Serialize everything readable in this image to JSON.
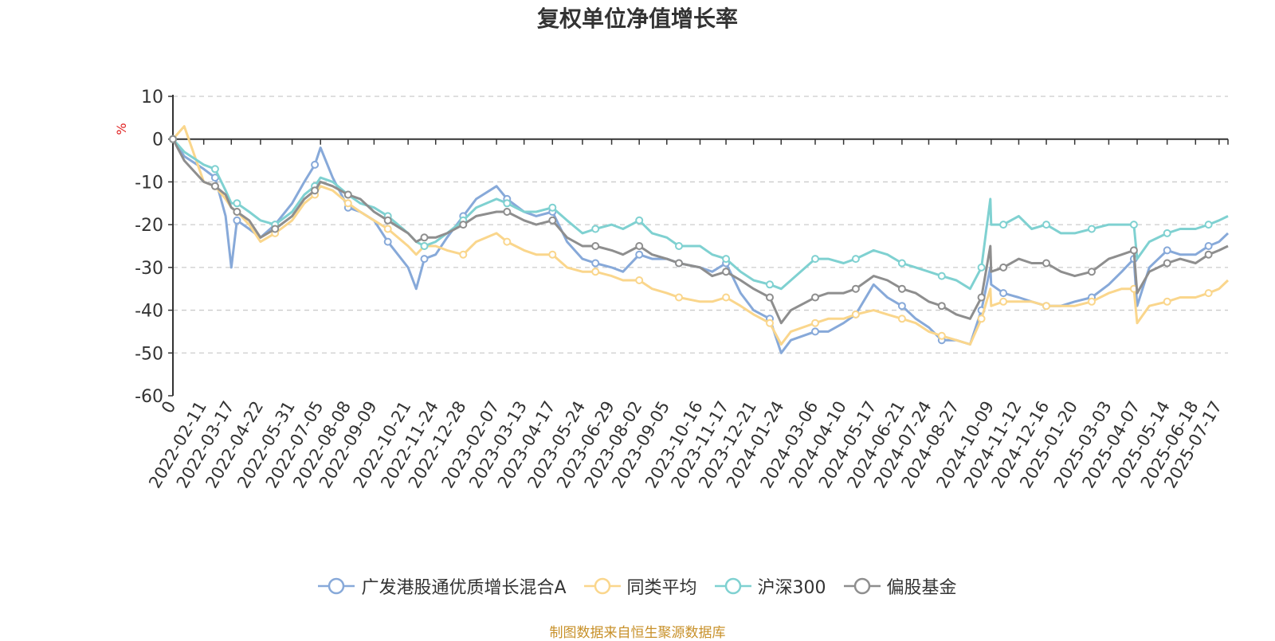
{
  "title": "复权单位净值增长率",
  "source_note": "制图数据来自恒生聚源数据库",
  "chart_data": {
    "type": "line",
    "ylabel": "%",
    "ylim": [
      -60,
      10
    ],
    "yticks": [
      10,
      0,
      -10,
      -20,
      -30,
      -40,
      -50,
      -60
    ],
    "grid": true,
    "legend_position": "bottom",
    "x_origin_label": "0",
    "x": [
      "2022-01-04",
      "2022-01-18",
      "2022-02-11",
      "2022-02-25",
      "2022-03-10",
      "2022-03-17",
      "2022-03-24",
      "2022-04-08",
      "2022-04-22",
      "2022-05-10",
      "2022-05-31",
      "2022-06-15",
      "2022-06-28",
      "2022-07-05",
      "2022-07-20",
      "2022-08-08",
      "2022-08-23",
      "2022-09-09",
      "2022-09-26",
      "2022-10-21",
      "2022-10-31",
      "2022-11-10",
      "2022-11-24",
      "2022-12-08",
      "2022-12-28",
      "2023-01-13",
      "2023-02-07",
      "2023-02-20",
      "2023-03-13",
      "2023-03-28",
      "2023-04-17",
      "2023-05-05",
      "2023-05-24",
      "2023-06-09",
      "2023-06-29",
      "2023-07-13",
      "2023-08-02",
      "2023-08-18",
      "2023-09-05",
      "2023-09-20",
      "2023-10-16",
      "2023-10-31",
      "2023-11-17",
      "2023-12-05",
      "2023-12-21",
      "2024-01-10",
      "2024-01-24",
      "2024-02-05",
      "2024-03-06",
      "2024-03-22",
      "2024-04-10",
      "2024-04-25",
      "2024-05-17",
      "2024-06-03",
      "2024-06-21",
      "2024-07-08",
      "2024-07-24",
      "2024-08-09",
      "2024-08-27",
      "2024-09-13",
      "2024-09-27",
      "2024-10-08",
      "2024-10-09",
      "2024-10-24",
      "2024-11-12",
      "2024-11-28",
      "2024-12-16",
      "2025-01-03",
      "2025-01-20",
      "2025-02-10",
      "2025-03-03",
      "2025-03-19",
      "2025-04-03",
      "2025-04-07",
      "2025-04-22",
      "2025-05-14",
      "2025-05-30",
      "2025-06-18",
      "2025-07-04",
      "2025-07-17",
      "2025-07-28"
    ],
    "xtick_labels": [
      "2022-02-11",
      "2022-03-17",
      "2022-04-22",
      "2022-05-31",
      "2022-07-05",
      "2022-08-08",
      "2022-09-09",
      "2022-10-21",
      "2022-11-24",
      "2022-12-28",
      "2023-02-07",
      "2023-03-13",
      "2023-04-17",
      "2023-05-24",
      "2023-06-29",
      "2023-08-02",
      "2023-09-05",
      "2023-10-16",
      "2023-11-17",
      "2023-12-21",
      "2024-01-24",
      "2024-03-06",
      "2024-04-10",
      "2024-05-17",
      "2024-06-21",
      "2024-07-24",
      "2024-08-27",
      "2024-10-09",
      "2024-11-12",
      "2024-12-16",
      "2025-01-20",
      "2025-03-03",
      "2025-04-07",
      "2025-05-14",
      "2025-06-18",
      "2025-07-17"
    ],
    "series": [
      {
        "name": "广发港股通优质增长混合A",
        "color": "#87a9d9",
        "values": [
          0,
          -4,
          -7,
          -9,
          -18,
          -30,
          -19,
          -21,
          -23,
          -20,
          -15,
          -10,
          -6,
          -2,
          -9,
          -16,
          -17,
          -19,
          -24,
          -30,
          -35,
          -28,
          -27,
          -23,
          -18,
          -14,
          -11,
          -14,
          -17,
          -18,
          -17,
          -24,
          -28,
          -29,
          -30,
          -31,
          -27,
          -28,
          -28,
          -29,
          -30,
          -31,
          -29,
          -36,
          -40,
          -42,
          -50,
          -47,
          -45,
          -45,
          -43,
          -41,
          -34,
          -37,
          -39,
          -42,
          -44,
          -47,
          -47,
          -48,
          -40,
          -30,
          -34,
          -36,
          -37,
          -38,
          -39,
          -39,
          -38,
          -37,
          -34,
          -31,
          -28,
          -39,
          -30,
          -26,
          -27,
          -27,
          -25,
          -24,
          -22
        ]
      },
      {
        "name": "同类平均",
        "color": "#fad68c",
        "values": [
          0,
          3,
          -10,
          -11,
          -14,
          -16,
          -17,
          -20,
          -24,
          -22,
          -19,
          -15,
          -13,
          -11,
          -12,
          -15,
          -17,
          -19,
          -21,
          -25,
          -27,
          -25,
          -25,
          -26,
          -27,
          -24,
          -22,
          -24,
          -26,
          -27,
          -27,
          -30,
          -31,
          -31,
          -32,
          -33,
          -33,
          -35,
          -36,
          -37,
          -38,
          -38,
          -37,
          -39,
          -41,
          -43,
          -48,
          -45,
          -43,
          -42,
          -42,
          -41,
          -40,
          -41,
          -42,
          -43,
          -45,
          -46,
          -47,
          -48,
          -42,
          -35,
          -39,
          -38,
          -38,
          -38,
          -39,
          -39,
          -39,
          -38,
          -36,
          -35,
          -35,
          -43,
          -39,
          -38,
          -37,
          -37,
          -36,
          -35,
          -33
        ]
      },
      {
        "name": "沪深300",
        "color": "#7fd1d1",
        "values": [
          0,
          -3,
          -6,
          -7,
          -12,
          -15,
          -15,
          -17,
          -19,
          -20,
          -17,
          -13,
          -11,
          -9,
          -10,
          -13,
          -15,
          -16,
          -18,
          -22,
          -24,
          -25,
          -24,
          -22,
          -19,
          -16,
          -14,
          -15,
          -17,
          -17,
          -16,
          -19,
          -22,
          -21,
          -20,
          -21,
          -19,
          -22,
          -23,
          -25,
          -25,
          -27,
          -28,
          -31,
          -33,
          -34,
          -35,
          -33,
          -28,
          -28,
          -29,
          -28,
          -26,
          -27,
          -29,
          -30,
          -31,
          -32,
          -33,
          -35,
          -30,
          -14,
          -20,
          -20,
          -18,
          -21,
          -20,
          -22,
          -22,
          -21,
          -20,
          -20,
          -20,
          -28,
          -24,
          -22,
          -21,
          -21,
          -20,
          -19,
          -18
        ]
      },
      {
        "name": "偏股基金",
        "color": "#8e8e8e",
        "values": [
          0,
          -5,
          -10,
          -11,
          -13,
          -16,
          -17,
          -19,
          -23,
          -21,
          -18,
          -14,
          -12,
          -10,
          -11,
          -13,
          -14,
          -17,
          -19,
          -22,
          -24,
          -23,
          -23,
          -22,
          -20,
          -18,
          -17,
          -17,
          -19,
          -20,
          -19,
          -23,
          -25,
          -25,
          -26,
          -27,
          -25,
          -27,
          -28,
          -29,
          -30,
          -32,
          -31,
          -33,
          -35,
          -37,
          -43,
          -40,
          -37,
          -36,
          -36,
          -35,
          -32,
          -33,
          -35,
          -36,
          -38,
          -39,
          -41,
          -42,
          -37,
          -25,
          -31,
          -30,
          -28,
          -29,
          -29,
          -31,
          -32,
          -31,
          -28,
          -27,
          -26,
          -36,
          -31,
          -29,
          -28,
          -29,
          -27,
          -26,
          -25
        ]
      }
    ]
  }
}
